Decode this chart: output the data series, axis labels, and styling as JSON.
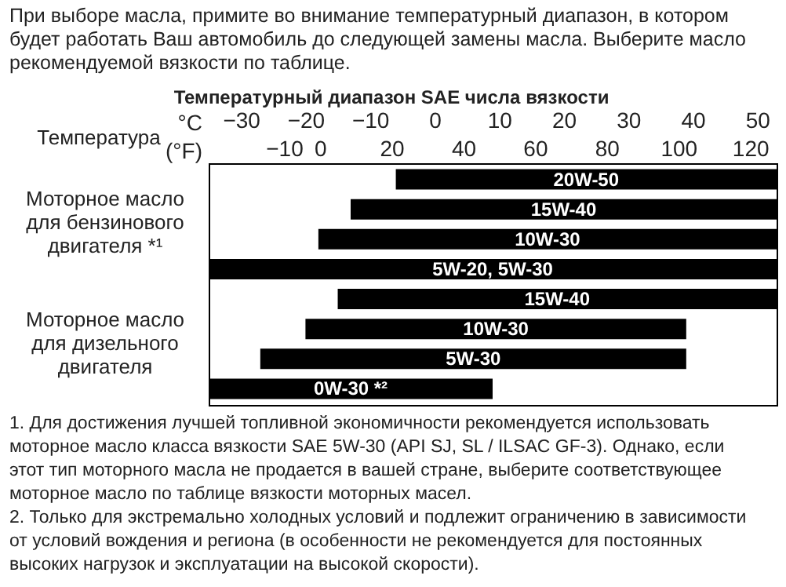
{
  "chart_data": {
    "type": "bar",
    "orientation": "horizontal",
    "title": "При выборе масла, примите во внимание температурный диапазон, в котором будет работать Ваш автомобиль до следующей замены масла. Выберите масло рекомендуемой вязкости по таблице.",
    "subtitle": "Температурный диапазон SAE числа вязкости",
    "xlabel": "°C",
    "x2label": "(°F)",
    "categories": [
      "20W-50",
      "15W-40",
      "10W-30",
      "5W-20, 5W-30",
      "15W-40",
      "10W-30",
      "5W-30",
      "0W-30 *²"
    ],
    "base": [
      -6,
      -13,
      -18,
      -35,
      -15,
      -20,
      -27,
      -35
    ],
    "values": [
      59,
      66,
      71,
      88,
      68,
      59,
      66,
      44
    ],
    "color": "#000000",
    "xlim": [
      -35,
      53
    ],
    "xticks": [
      -30,
      -20,
      -10,
      0,
      10,
      20,
      30,
      40,
      50
    ],
    "x2lim": [
      -31,
      127.4
    ],
    "x2ticks": [
      -10,
      0,
      20,
      40,
      60,
      80,
      100,
      120
    ],
    "annotations": [
      "Температура",
      "Моторное масло для бензинового двигателя *¹",
      "Моторное масло для дизельного двигателя",
      "1. Для достижения лучшей топливной экономичности рекомендуется использовать моторное масло класса вязкости SAE 5W-30 (API SJ, SL / ILSAC GF-3). Однако, если этот тип моторного масла не продается в вашей стране, выберите соответствующее моторное масло по таблице вязкости моторных масел.",
      "2. Только для экстремально холодных условий и подлежит ограничению в зависимости от условий вождения и региона (в особенности не рекомендуется для постоянных высоких нагрузок и эксплуатации на высокой скорости)."
    ]
  }
}
